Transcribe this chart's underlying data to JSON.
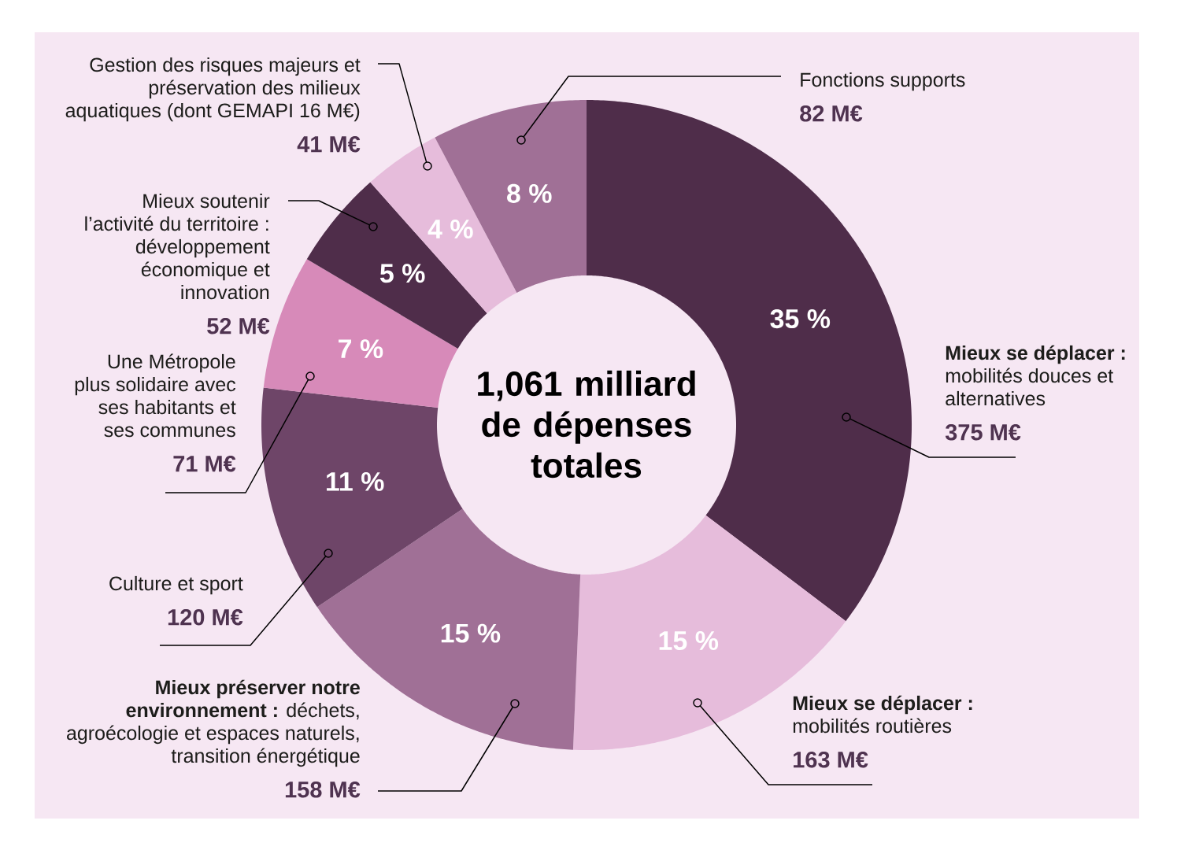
{
  "chart_data": {
    "type": "donut",
    "title": "1,061 milliard de dépenses totales",
    "categories": [
      "**Mieux se déplacer :** mobilités douces et alternatives",
      "**Mieux se déplacer :** mobilités routières",
      "**Mieux préserver notre environnement :** déchets, agroécologie et espaces naturels, transition énergétique",
      "Culture et sport",
      "Une Métropole plus solidaire avec ses habitants et ses communes",
      "Mieux soutenir l’activité du territoire : développement économique et innovation",
      "Gestion des risques majeurs et préservation des milieux aquatiques (dont GEMAPI 16 M€)",
      "Fonctions supports"
    ],
    "values": [
      375,
      163,
      158,
      120,
      71,
      52,
      41,
      82
    ],
    "colors": [
      "#4f2d4a",
      "#e6bcdb",
      "#a07096",
      "#6e4568",
      "#d78ab9",
      "#4f2d4a",
      "#e6bcdb",
      "#a07096"
    ],
    "value_labels": [
      "375 M€",
      "163 M€",
      "158 M€",
      "120 M€",
      "71 M€",
      "52 M€",
      "41 M€",
      "82 M€"
    ],
    "annotations": [
      "35 %",
      "15 %",
      "15 %",
      "11 %",
      "7 %",
      "5 %",
      "4 %",
      "8 %"
    ]
  }
}
